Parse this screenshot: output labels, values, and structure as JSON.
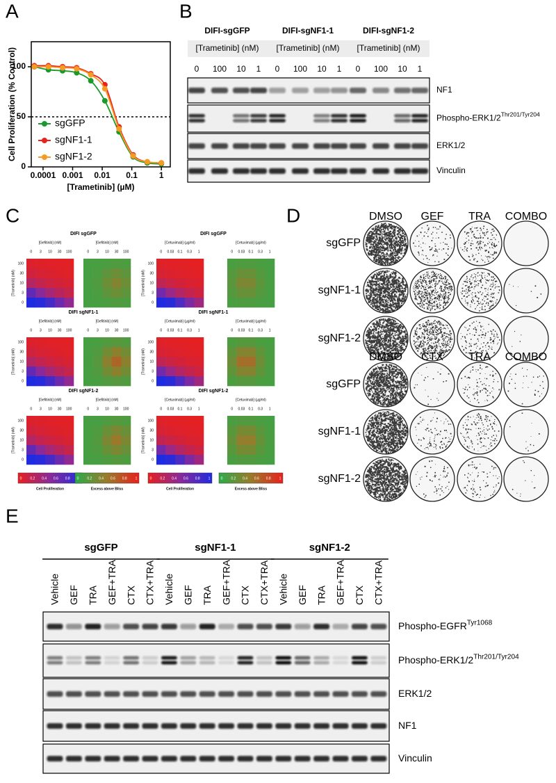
{
  "panel_labels": [
    "A",
    "B",
    "C",
    "D",
    "E"
  ],
  "chart_data": {
    "type": "line",
    "xlabel": "[Trametinib] (µM)",
    "ylabel": "Cell Proliferation (% Control)",
    "x": [
      5.08e-05,
      0.000152,
      0.000457,
      0.00137,
      0.00412,
      0.0123,
      0.037,
      0.111,
      0.333,
      1
    ],
    "xlim": [
      4e-05,
      2
    ],
    "xticks": [
      0.0001,
      0.001,
      0.01,
      0.1,
      1
    ],
    "log_x": true,
    "ylim": [
      0,
      125
    ],
    "yticks": [
      0,
      50,
      100
    ],
    "reference_line": 50,
    "legend": "lower left",
    "series": [
      {
        "name": "sgGFP",
        "color": "#1a9a2a",
        "values": [
          100,
          97,
          96,
          94,
          86,
          66,
          35,
          10,
          4,
          3
        ]
      },
      {
        "name": "sgNF1-1",
        "color": "#e8231e",
        "values": [
          101,
          101,
          100,
          99,
          93,
          82,
          40,
          12,
          5,
          4
        ]
      },
      {
        "name": "sgNF1-2",
        "color": "#f59a23",
        "values": [
          100,
          100,
          99,
          98,
          92,
          78,
          38,
          11,
          5,
          4
        ]
      }
    ]
  },
  "blot_b": {
    "groups": [
      {
        "name": "DIFI-sgGFP",
        "axis_label": "[Trametinib] (nM)",
        "lanes": [
          0,
          100,
          10,
          1
        ]
      },
      {
        "name": "DIFI-sgNF1-1",
        "axis_label": "[Trametinib] (nM)",
        "lanes": [
          0,
          100,
          10,
          1
        ]
      },
      {
        "name": "DIFI-sgNF1-2",
        "axis_label": "[Trametinib] (nM)",
        "lanes": [
          0,
          100,
          10,
          1
        ]
      }
    ],
    "rows": [
      {
        "label": "NF1"
      },
      {
        "label": "Phospho-ERK1/2",
        "sup": "Thr201/Tyr204"
      },
      {
        "label": "ERK1/2"
      },
      {
        "label": "Vinculin"
      }
    ]
  },
  "heatmaps_c": {
    "cell_lines": [
      "DIFI sgGFP",
      "DIFI sgNF1-1",
      "DIFI sgNF1-2"
    ],
    "drugs": [
      {
        "axis_label": "[Gefitinib] (nM)",
        "ticks": [
          0,
          3,
          10,
          30,
          100
        ]
      },
      {
        "axis_label": "[Cetuximab] (µg/ml)",
        "ticks": [
          0,
          0.03,
          0.1,
          0.3,
          1
        ]
      }
    ],
    "y_axis_label": "[Trametinib] (nM)",
    "y_ticks": [
      100,
      30,
      10,
      3,
      0
    ],
    "colorbars": [
      {
        "label": "Cell Proliferation",
        "ticks": [
          0,
          0.2,
          0.4,
          0.6,
          0.8,
          1
        ]
      },
      {
        "label": "Excess above Bliss",
        "ticks": [
          0,
          0.2,
          0.4,
          0.6,
          0.8,
          1
        ]
      }
    ]
  },
  "colony_d": {
    "blocks": [
      {
        "columns": [
          "DMSO",
          "GEF",
          "TRA",
          "COMBO"
        ],
        "rows": [
          "sgGFP",
          "sgNF1-1",
          "sgNF1-2"
        ]
      },
      {
        "columns": [
          "DMSO",
          "CTX",
          "TRA",
          "COMBO"
        ],
        "rows": [
          "sgGFP",
          "sgNF1-1",
          "sgNF1-2"
        ]
      }
    ]
  },
  "blot_e": {
    "groups": [
      {
        "name": "sgGFP",
        "lanes": [
          "Vehicle",
          "GEF",
          "TRA",
          "GEF+TRA",
          "CTX",
          "CTX+TRA"
        ]
      },
      {
        "name": "sgNF1-1",
        "lanes": [
          "Vehicle",
          "GEF",
          "TRA",
          "GEF+TRA",
          "CTX",
          "CTX+TRA"
        ]
      },
      {
        "name": "sgNF1-2",
        "lanes": [
          "Vehicle",
          "GEF",
          "TRA",
          "GEF+TRA",
          "CTX",
          "CTX+TRA"
        ]
      }
    ],
    "rows": [
      {
        "label": "Phospho-EGFR",
        "sup": "Tyr1068"
      },
      {
        "label": "Phospho-ERK1/2",
        "sup": "Thr201/Tyr204"
      },
      {
        "label": "ERK1/2"
      },
      {
        "label": "NF1"
      },
      {
        "label": "Vinculin"
      }
    ]
  }
}
